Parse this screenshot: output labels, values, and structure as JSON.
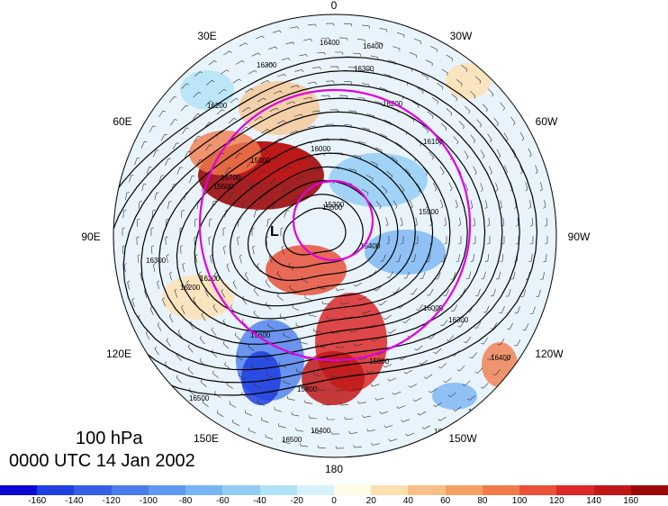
{
  "map": {
    "projection": "north polar stereographic",
    "center_label": "L",
    "longitude_labels": [
      {
        "key": "lon-0",
        "text": "0"
      },
      {
        "key": "lon-30w",
        "text": "30W"
      },
      {
        "key": "lon-60w",
        "text": "60W"
      },
      {
        "key": "lon-90w",
        "text": "90W"
      },
      {
        "key": "lon-120w",
        "text": "120W"
      },
      {
        "key": "lon-150w",
        "text": "150W"
      },
      {
        "key": "lon-180",
        "text": "180"
      },
      {
        "key": "lon-150e",
        "text": "150E"
      },
      {
        "key": "lon-120e",
        "text": "120E"
      },
      {
        "key": "lon-90e",
        "text": "90E"
      },
      {
        "key": "lon-60e",
        "text": "60E"
      },
      {
        "key": "lon-30e",
        "text": "30E"
      }
    ],
    "contour_labels": [
      "16400",
      "16400",
      "16300",
      "16300",
      "16200",
      "16200",
      "16100",
      "16000",
      "15800",
      "15800",
      "15700",
      "15600",
      "15500",
      "15400",
      "15300",
      "16000",
      "15900",
      "15800",
      "15600",
      "16400",
      "16500",
      "16400",
      "16300",
      "16500",
      "16200",
      "16300",
      "16200",
      "16500",
      "16400"
    ],
    "colors": {
      "contour": "#000000",
      "circle": "#e000e0",
      "positive_max": "#9b0a0a",
      "negative_max": "#1010d0"
    }
  },
  "caption": {
    "level": "100 hPa",
    "time": "0000 UTC 14 Jan 2002"
  },
  "colorbar": {
    "ticks": [
      "-160",
      "-140",
      "-120",
      "-100",
      "-80",
      "-60",
      "-40",
      "-20",
      "0",
      "20",
      "40",
      "60",
      "80",
      "100",
      "120",
      "140",
      "160"
    ],
    "colors": [
      "#0a0ad4",
      "#2040e0",
      "#3560e6",
      "#4a7cec",
      "#5f98f0",
      "#78b4f4",
      "#94ccf6",
      "#b0e2f8",
      "#d4f2fb",
      "#fffbe6",
      "#fce0b0",
      "#f8c088",
      "#f4a064",
      "#f07c4c",
      "#e85038",
      "#dc2828",
      "#c01818",
      "#9b0a0a"
    ]
  }
}
